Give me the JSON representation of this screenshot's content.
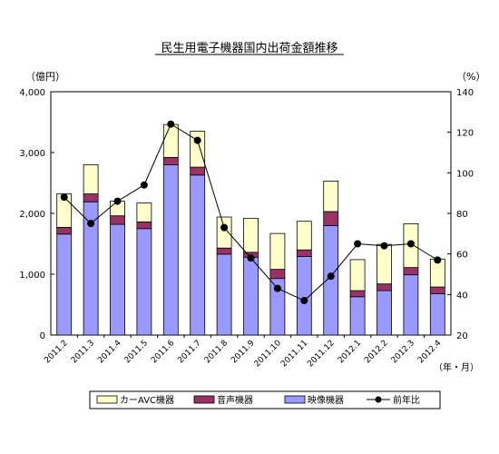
{
  "chart_data": {
    "type": "bar",
    "title": "民生用電子機器国内出荷金額推移",
    "y_left_unit": "（億円）",
    "y_right_unit": "（%）",
    "x_unit": "（年・月）",
    "categories": [
      "2011.2",
      "2011.3",
      "2011.4",
      "2011.5",
      "2011.6",
      "2011.7",
      "2011.8",
      "2011.9",
      "2011.10",
      "2011.11",
      "2011.12",
      "2012.1",
      "2012.2",
      "2012.3",
      "2012.4"
    ],
    "y_left_ticks": [
      "0",
      "1,000",
      "2,000",
      "3,000",
      "4,000"
    ],
    "y_right_ticks": [
      "20",
      "40",
      "60",
      "80",
      "100",
      "120",
      "140"
    ],
    "y_left_range": [
      0,
      4000
    ],
    "y_right_range": [
      20,
      140
    ],
    "stacked_bars": [
      {
        "name": "映像機器",
        "color": "#9999ff",
        "values": [
          1660,
          2190,
          1820,
          1750,
          2800,
          2630,
          1330,
          1280,
          930,
          1290,
          1800,
          630,
          730,
          990,
          680
        ]
      },
      {
        "name": "音声機器",
        "color": "#993366",
        "values": [
          110,
          130,
          140,
          110,
          120,
          130,
          100,
          80,
          150,
          110,
          230,
          100,
          110,
          120,
          110
        ]
      },
      {
        "name": "カーAVC機器",
        "color": "#ffffcc",
        "values": [
          550,
          480,
          240,
          310,
          540,
          590,
          510,
          560,
          590,
          470,
          500,
          510,
          650,
          720,
          460
        ]
      }
    ],
    "line_series": {
      "name": "前年比",
      "color": "#000000",
      "values": [
        88,
        75,
        86,
        94,
        124,
        116,
        73,
        58,
        43,
        37,
        49,
        65,
        64,
        65,
        57
      ]
    },
    "legend_position": "bottom",
    "grid": false
  }
}
